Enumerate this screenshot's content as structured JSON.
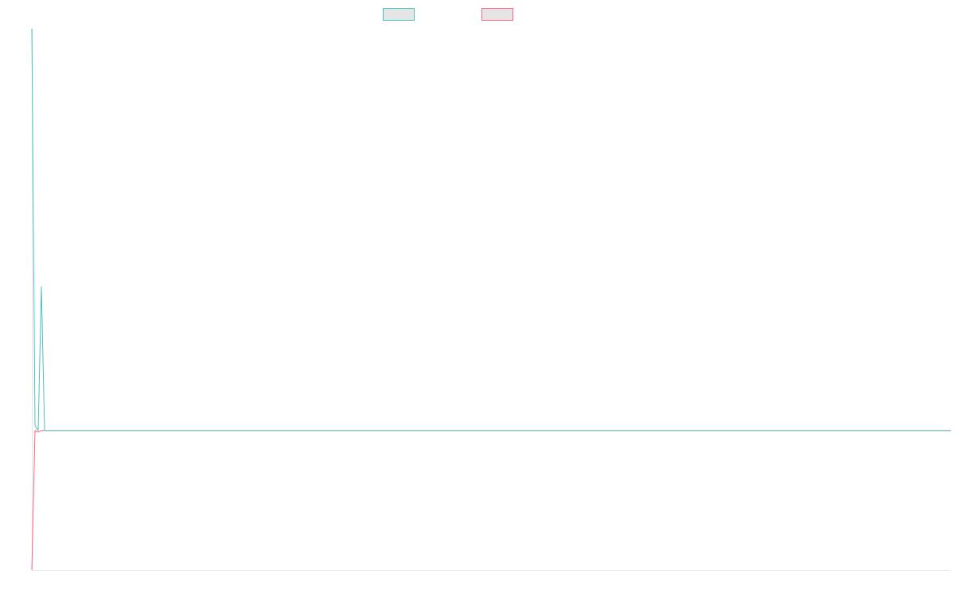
{
  "chart_data": {
    "type": "line",
    "title": "",
    "xlabel": "",
    "ylabel": "",
    "grid": false,
    "legend_placement": "top",
    "ylim": [
      -34.7,
      100
    ],
    "series": [
      {
        "color": "#4bc0c0",
        "values": [
          100,
          1.2,
          0,
          35.8,
          0,
          0,
          0,
          0,
          0,
          0,
          0,
          0,
          0,
          0,
          0,
          0,
          0,
          0,
          0,
          0,
          0,
          0,
          0,
          0,
          0,
          0,
          0,
          0,
          0,
          0,
          0,
          0,
          0,
          0,
          0,
          0,
          0,
          0,
          0,
          0,
          0,
          0,
          0,
          0,
          0,
          0,
          0,
          0,
          0,
          0,
          0,
          0,
          0,
          0,
          0,
          0,
          0,
          0,
          0,
          0,
          0,
          0,
          0,
          0,
          0,
          0,
          0,
          0,
          0,
          0,
          0,
          0,
          0,
          0,
          0,
          0,
          0,
          0,
          0,
          0,
          0,
          0,
          0,
          0,
          0,
          0,
          0,
          0,
          0,
          0,
          0,
          0,
          0,
          0,
          0,
          0,
          0,
          0,
          0,
          0,
          0,
          0,
          0,
          0,
          0,
          0,
          0,
          0,
          0,
          0,
          0,
          0,
          0,
          0,
          0,
          0,
          0,
          0,
          0,
          0,
          0,
          0,
          0,
          0,
          0,
          0,
          0,
          0,
          0,
          0,
          0,
          0,
          0,
          0,
          0,
          0,
          0,
          0,
          0,
          0,
          0,
          0,
          0,
          0,
          0,
          0,
          0,
          0,
          0,
          0,
          0,
          0,
          0,
          0,
          0,
          0,
          0,
          0,
          0,
          0,
          0,
          0,
          0,
          0,
          0,
          0,
          0,
          0,
          0,
          0,
          0,
          0,
          0,
          0,
          0,
          0,
          0,
          0,
          0,
          0,
          0,
          0,
          0,
          0,
          0,
          0,
          0,
          0,
          0,
          0,
          0,
          0,
          0,
          0,
          0,
          0,
          0,
          0,
          0,
          0,
          0,
          0,
          0,
          0,
          0,
          0,
          0,
          0,
          0,
          0,
          0,
          0,
          0,
          0,
          0,
          0,
          0,
          0,
          0,
          0,
          0,
          0,
          0,
          0,
          0,
          0,
          0,
          0,
          0,
          0,
          0,
          0,
          0,
          0,
          0,
          0,
          0,
          0,
          0,
          0,
          0,
          0,
          0,
          0,
          0,
          0,
          0,
          0,
          0,
          0,
          0,
          0,
          0,
          0,
          0,
          0,
          0,
          0,
          0,
          0,
          0,
          0,
          0,
          0,
          0,
          0,
          0,
          0,
          0,
          0,
          0,
          0,
          0,
          0,
          0,
          0,
          0,
          0,
          0,
          0,
          0,
          0,
          0,
          0,
          0,
          0,
          0,
          0,
          0,
          0
        ]
      },
      {
        "color": "#ff6384",
        "values": [
          -34.7,
          0,
          -0.4,
          0,
          0,
          0,
          0,
          0,
          0,
          0,
          0,
          0,
          0,
          0,
          0,
          0,
          0,
          0,
          0,
          0,
          0,
          0,
          0,
          0,
          0,
          0,
          0,
          0,
          0,
          0,
          0,
          0,
          0,
          0,
          0,
          0,
          0,
          0,
          0,
          0,
          0,
          0,
          0,
          0,
          0,
          0,
          0,
          0,
          0,
          0,
          0,
          0,
          0,
          0,
          0,
          0,
          0,
          0,
          0,
          0,
          0,
          0,
          0,
          0,
          0,
          0,
          0,
          0,
          0,
          0,
          0,
          0,
          0,
          0,
          0,
          0,
          0,
          0,
          0,
          0,
          0,
          0,
          0,
          0,
          0,
          0,
          0,
          0,
          0,
          0,
          0,
          0,
          0,
          0,
          0,
          0,
          0,
          0,
          0,
          0,
          0,
          0,
          0,
          0,
          0,
          0,
          0,
          0,
          0,
          0,
          0,
          0,
          0,
          0,
          0,
          0,
          0,
          0,
          0,
          0,
          0,
          0,
          0,
          0,
          0,
          0,
          0,
          0,
          0,
          0,
          0,
          0,
          0,
          0,
          0,
          0,
          0,
          0,
          0,
          0,
          0,
          0,
          0,
          0,
          0,
          0,
          0,
          0,
          0,
          0,
          0,
          0,
          0,
          0,
          0,
          0,
          0,
          0,
          0,
          0,
          0,
          0,
          0,
          0,
          0,
          0,
          0,
          0,
          0,
          0,
          0,
          0,
          0,
          0,
          0,
          0,
          0,
          0,
          0,
          0,
          0,
          0,
          0,
          0,
          0,
          0,
          0,
          0,
          0,
          0,
          0,
          0,
          0,
          0,
          0,
          0,
          0,
          0,
          0,
          0,
          0,
          0,
          0,
          0,
          0,
          0,
          0,
          0,
          0,
          0,
          0,
          0,
          0,
          0,
          0,
          0,
          0,
          0,
          0,
          0,
          0,
          0,
          0,
          0,
          0,
          0,
          0,
          0,
          0,
          0,
          0,
          0,
          0,
          0,
          0,
          0,
          0,
          0,
          0,
          0,
          0,
          0,
          0,
          0,
          0,
          0,
          0,
          0,
          0,
          0,
          0,
          0,
          0,
          0,
          0,
          0,
          0,
          0,
          0,
          0,
          0,
          0,
          0,
          0,
          0,
          0,
          0,
          0,
          0,
          0,
          0,
          0,
          0,
          0,
          0,
          0,
          0,
          0,
          0,
          0,
          0,
          0,
          0,
          0,
          0,
          0,
          0,
          0,
          0,
          0
        ]
      }
    ]
  }
}
